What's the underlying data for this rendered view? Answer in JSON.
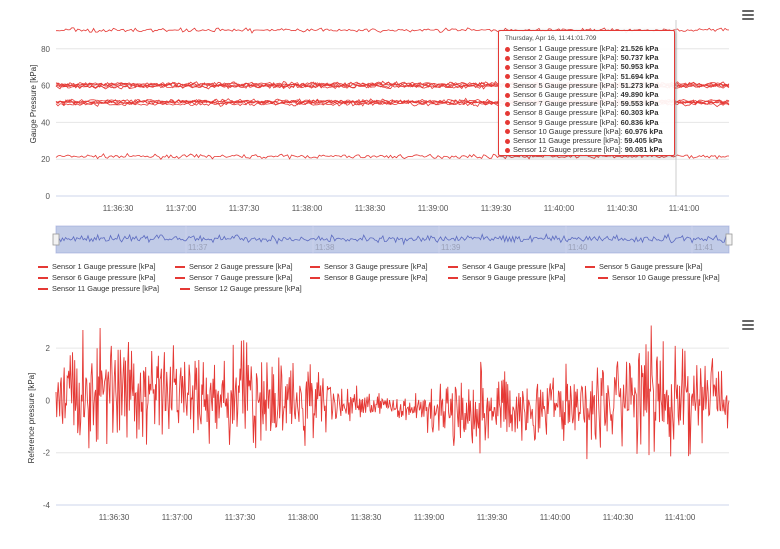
{
  "chart_top": {
    "type": "line",
    "title": "",
    "ylabel": "Gauge Pressure [kPa]",
    "ylim": [
      0,
      100
    ],
    "yticks": [
      "0",
      "20",
      "40",
      "60",
      "80"
    ],
    "xticks": [
      "11:36:30",
      "11:37:00",
      "11:37:30",
      "11:38:00",
      "11:38:30",
      "11:39:00",
      "11:39:30",
      "11:40:00",
      "11:40:30",
      "11:41:00"
    ],
    "navigator_ticks": [
      "11:37",
      "11:38",
      "11:39",
      "11:40",
      "11:41"
    ],
    "series_color": "#e53935",
    "navigator_color": "#5c6bc0",
    "series": [
      {
        "name": "Sensor 1 Gauge pressure [kPa]",
        "level": 21.5
      },
      {
        "name": "Sensor 2 Gauge pressure [kPa]",
        "level": 50.7
      },
      {
        "name": "Sensor 3 Gauge pressure [kPa]",
        "level": 51.0
      },
      {
        "name": "Sensor 4 Gauge pressure [kPa]",
        "level": 51.7
      },
      {
        "name": "Sensor 5 Gauge pressure [kPa]",
        "level": 51.3
      },
      {
        "name": "Sensor 6 Gauge pressure [kPa]",
        "level": 49.9
      },
      {
        "name": "Sensor 7 Gauge pressure [kPa]",
        "level": 59.6
      },
      {
        "name": "Sensor 8 Gauge pressure [kPa]",
        "level": 60.3
      },
      {
        "name": "Sensor 9 Gauge pressure [kPa]",
        "level": 60.8
      },
      {
        "name": "Sensor 10 Gauge pressure [kPa]",
        "level": 61.0
      },
      {
        "name": "Sensor 11 Gauge pressure [kPa]",
        "level": 59.4
      },
      {
        "name": "Sensor 12 Gauge pressure [kPa]",
        "level": 90.1
      }
    ]
  },
  "tooltip": {
    "header": "Thursday, Apr 16, 11:41:01.709",
    "rows": [
      {
        "name": "Sensor 1 Gauge pressure [kPa]",
        "value": "21.526 kPa"
      },
      {
        "name": "Sensor 2 Gauge pressure [kPa]",
        "value": "50.737 kPa"
      },
      {
        "name": "Sensor 3 Gauge pressure [kPa]",
        "value": "50.953 kPa"
      },
      {
        "name": "Sensor 4 Gauge pressure [kPa]",
        "value": "51.694 kPa"
      },
      {
        "name": "Sensor 5 Gauge pressure [kPa]",
        "value": "51.273 kPa"
      },
      {
        "name": "Sensor 6 Gauge pressure [kPa]",
        "value": "49.890 kPa"
      },
      {
        "name": "Sensor 7 Gauge pressure [kPa]",
        "value": "59.553 kPa"
      },
      {
        "name": "Sensor 8 Gauge pressure [kPa]",
        "value": "60.303 kPa"
      },
      {
        "name": "Sensor 9 Gauge pressure [kPa]",
        "value": "60.836 kPa"
      },
      {
        "name": "Sensor 10 Gauge pressure [kPa]",
        "value": "60.976 kPa"
      },
      {
        "name": "Sensor 11 Gauge pressure [kPa]",
        "value": "59.405 kPa"
      },
      {
        "name": "Sensor 12 Gauge pressure [kPa]",
        "value": "90.081 kPa"
      }
    ]
  },
  "chart_bottom": {
    "type": "line",
    "title": "",
    "ylabel": "Reference pressure [kPa]",
    "ylim": [
      -4,
      3
    ],
    "yticks": [
      "-4",
      "-2",
      "0",
      "2"
    ],
    "xticks": [
      "11:36:30",
      "11:37:00",
      "11:37:30",
      "11:38:00",
      "11:38:30",
      "11:39:00",
      "11:39:30",
      "11:40:00",
      "11:40:30",
      "11:41:00"
    ],
    "series_color": "#e53935"
  },
  "menu_icon": "hamburger-menu-icon"
}
